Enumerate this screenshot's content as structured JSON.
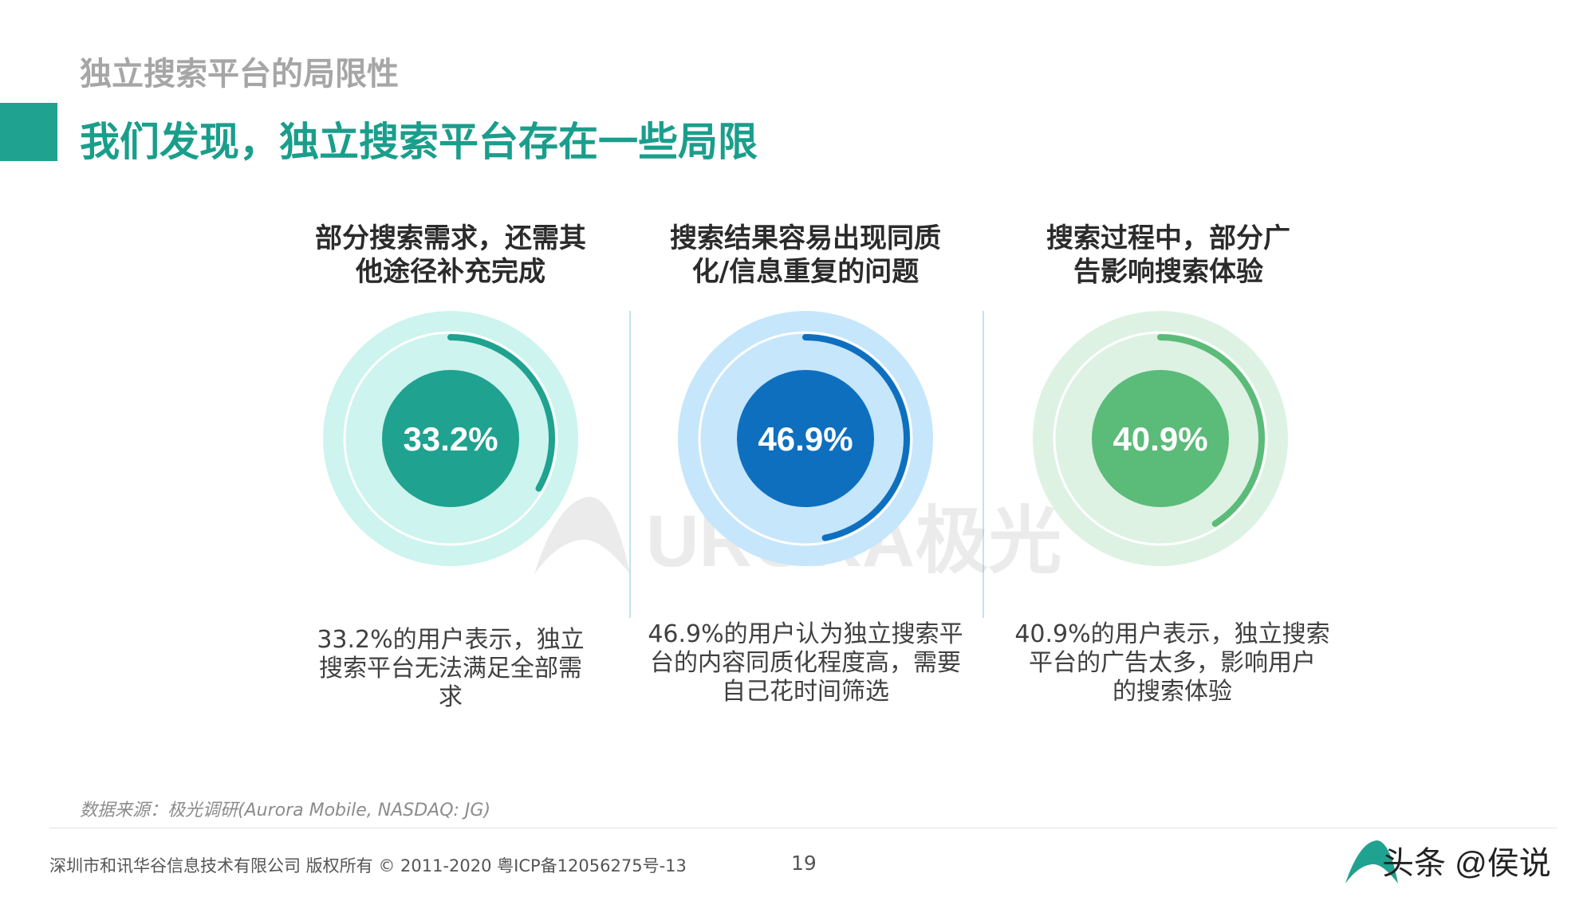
{
  "header": {
    "section_label": "独立搜索平台的局限性",
    "title": "我们发现，独立搜索平台存在一些局限"
  },
  "panels": [
    {
      "heading_line1": "部分搜索需求，还需其",
      "heading_line2": "他途径补充完成",
      "value_label": "33.2%",
      "desc_line1": "33.2%的用户表示，独立",
      "desc_line2": "搜索平台无法满足全部需",
      "desc_line3": "求"
    },
    {
      "heading_line1": "搜索结果容易出现同质",
      "heading_line2": "化/信息重复的问题",
      "value_label": "46.9%",
      "desc_line1": "46.9%的用户认为独立搜索平",
      "desc_line2": "台的内容同质化程度高，需要",
      "desc_line3": "自己花时间筛选"
    },
    {
      "heading_line1": "搜索过程中，部分广",
      "heading_line2": "告影响搜索体验",
      "value_label": "40.9%",
      "desc_line1": "40.9%的用户表示，独立搜索",
      "desc_line2": "平台的广告太多，影响用户",
      "desc_line3": "的搜索体验"
    }
  ],
  "chart_data": {
    "type": "pie",
    "series": [
      {
        "value": 33.2,
        "unit": "%",
        "colors": {
          "outer": "#cdf4ee",
          "arc": "#1fa28f",
          "center": "#1fa28f",
          "ring": "#ffffff"
        }
      },
      {
        "value": 46.9,
        "unit": "%",
        "colors": {
          "outer": "#c6e6fb",
          "arc": "#0e6fbf",
          "center": "#0e6fbf",
          "ring": "#ffffff"
        }
      },
      {
        "value": 40.9,
        "unit": "%",
        "colors": {
          "outer": "#ddf2e3",
          "arc": "#5bbb79",
          "center": "#5bbb79",
          "ring": "#ffffff"
        }
      }
    ]
  },
  "watermark": {
    "text": "URORA极光"
  },
  "footer": {
    "source": "数据来源：极光调研(Aurora Mobile, NASDAQ: JG)",
    "copyright": "深圳市和讯华谷信息技术有限公司 版权所有 © 2011-2020 粤ICP备12056275号-13",
    "page_number": "19",
    "logo_text": "头条 @侯说"
  }
}
